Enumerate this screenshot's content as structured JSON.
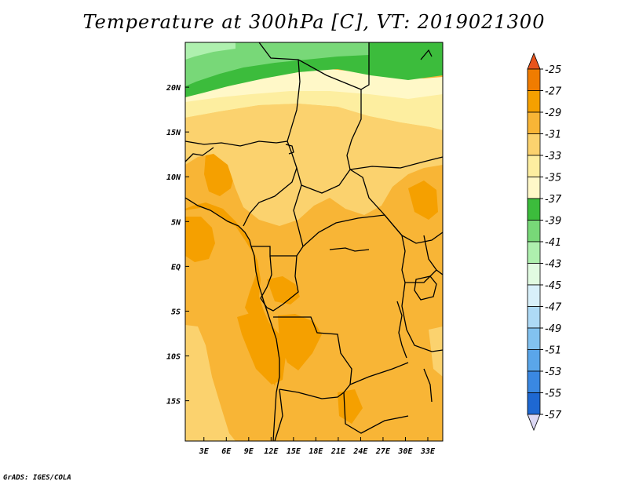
{
  "chart_data": {
    "type": "heatmap",
    "title": "Temperature at 300hPa [C], VT: 2019021300",
    "units": "C",
    "x_ticks": [
      "3E",
      "6E",
      "9E",
      "12E",
      "15E",
      "18E",
      "21E",
      "24E",
      "27E",
      "30E",
      "33E"
    ],
    "x_tick_values": [
      3,
      6,
      9,
      12,
      15,
      18,
      21,
      24,
      27,
      30,
      33
    ],
    "y_ticks": [
      "20N",
      "15N",
      "10N",
      "5N",
      "EQ",
      "5S",
      "10S",
      "15S"
    ],
    "y_tick_values": [
      20,
      15,
      10,
      5,
      0,
      -5,
      -10,
      -15
    ],
    "xlim": [
      0.5,
      35
    ],
    "ylim": [
      -19.5,
      25
    ],
    "colorbar": {
      "labels": [
        "-25",
        "-27",
        "-29",
        "-31",
        "-33",
        "-35",
        "-37",
        "-39",
        "-41",
        "-43",
        "-45",
        "-47",
        "-49",
        "-51",
        "-53",
        "-55",
        "-57"
      ],
      "colors": [
        "#e8541c",
        "#f07c00",
        "#f5a000",
        "#f8b536",
        "#fbd26e",
        "#fdeea0",
        "#fff8c8",
        "#3cbc3c",
        "#78d878",
        "#aef0ae",
        "#e1fbe1",
        "#d8f0fa",
        "#aedaf6",
        "#82c2f0",
        "#5aa6ea",
        "#3a88e2",
        "#1e68d2",
        "#0a48b4",
        "#00128c",
        "#dcd8f4"
      ],
      "top_triangle_color": "#e8541c",
      "bottom_triangle_color": "#dcd8f4"
    }
  },
  "credit": "GrADS: IGES/COLA"
}
